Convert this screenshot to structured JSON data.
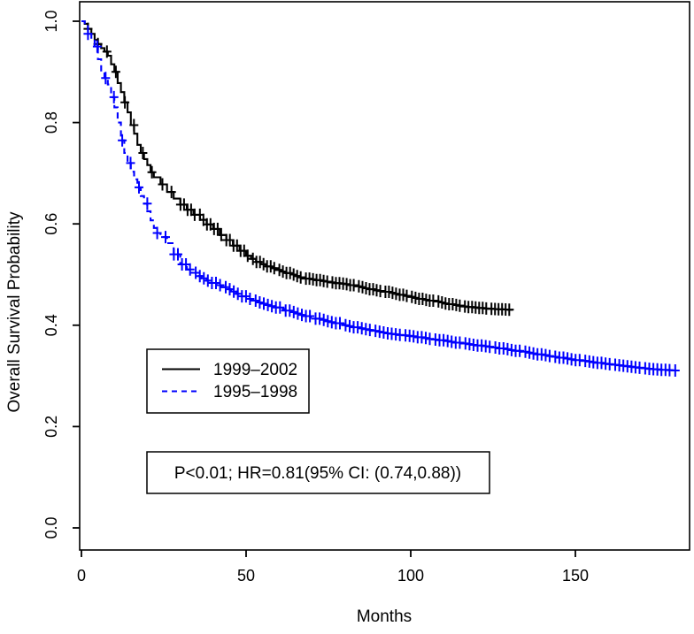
{
  "figure": {
    "xlabel": "Months",
    "ylabel": "Overall Survival Probability",
    "annotation": "P<0.01; HR=0.81(95% CI: (0.74,0.88))"
  },
  "legend": {
    "items": [
      {
        "label": "1999–2002",
        "color": "#000000",
        "style": "solid"
      },
      {
        "label": "1995–1998",
        "color": "#0000ff",
        "style": "dashed"
      }
    ]
  },
  "chart_data": {
    "type": "line",
    "subtype": "kaplan-meier-step",
    "title": "",
    "xlabel": "Months",
    "ylabel": "Overall Survival Probability",
    "xlim": [
      0,
      185
    ],
    "ylim": [
      0,
      1
    ],
    "x_ticks": [
      0,
      50,
      100,
      150
    ],
    "y_ticks": [
      0.0,
      0.2,
      0.4,
      0.6,
      0.8,
      1.0
    ],
    "grid": false,
    "legend_position": "inside-left-middle",
    "annotation": "P<0.01; HR=0.81(95% CI: (0.74,0.88))",
    "series": [
      {
        "name": "1999–2002",
        "color": "#000000",
        "line_style": "solid",
        "points": [
          [
            0,
            1.0
          ],
          [
            1,
            0.995
          ],
          [
            2,
            0.985
          ],
          [
            3,
            0.975
          ],
          [
            4,
            0.963
          ],
          [
            5,
            0.955
          ],
          [
            6,
            0.947
          ],
          [
            7,
            0.94
          ],
          [
            8,
            0.932
          ],
          [
            9,
            0.915
          ],
          [
            10,
            0.9
          ],
          [
            11,
            0.878
          ],
          [
            12,
            0.86
          ],
          [
            13,
            0.84
          ],
          [
            14,
            0.82
          ],
          [
            15,
            0.795
          ],
          [
            16,
            0.778
          ],
          [
            17,
            0.756
          ],
          [
            18,
            0.74
          ],
          [
            19,
            0.728
          ],
          [
            20,
            0.716
          ],
          [
            21,
            0.702
          ],
          [
            22,
            0.692
          ],
          [
            24,
            0.678
          ],
          [
            26,
            0.663
          ],
          [
            28,
            0.65
          ],
          [
            30,
            0.638
          ],
          [
            32,
            0.628
          ],
          [
            34,
            0.618
          ],
          [
            36,
            0.608
          ],
          [
            38,
            0.599
          ],
          [
            40,
            0.59
          ],
          [
            42,
            0.578
          ],
          [
            44,
            0.568
          ],
          [
            46,
            0.557
          ],
          [
            48,
            0.547
          ],
          [
            50,
            0.537
          ],
          [
            53,
            0.525
          ],
          [
            56,
            0.516
          ],
          [
            59,
            0.509
          ],
          [
            62,
            0.503
          ],
          [
            65,
            0.497
          ],
          [
            68,
            0.492
          ],
          [
            71,
            0.489
          ],
          [
            74,
            0.486
          ],
          [
            77,
            0.483
          ],
          [
            80,
            0.481
          ],
          [
            83,
            0.477
          ],
          [
            86,
            0.473
          ],
          [
            89,
            0.469
          ],
          [
            92,
            0.466
          ],
          [
            95,
            0.462
          ],
          [
            98,
            0.458
          ],
          [
            101,
            0.454
          ],
          [
            104,
            0.45
          ],
          [
            107,
            0.447
          ],
          [
            110,
            0.443
          ],
          [
            113,
            0.44
          ],
          [
            116,
            0.437
          ],
          [
            119,
            0.435
          ],
          [
            122,
            0.433
          ],
          [
            125,
            0.432
          ],
          [
            128,
            0.431
          ],
          [
            131,
            0.43
          ]
        ],
        "censoring": {
          "start": 2,
          "end": 131,
          "early_spacing": 2.8,
          "late_spacing": 1.15,
          "transition": 28
        }
      },
      {
        "name": "1995–1998",
        "color": "#0000ff",
        "line_style": "dashed",
        "points": [
          [
            0,
            1.0
          ],
          [
            1,
            0.99
          ],
          [
            2,
            0.975
          ],
          [
            3,
            0.962
          ],
          [
            4,
            0.95
          ],
          [
            5,
            0.925
          ],
          [
            6,
            0.9
          ],
          [
            7,
            0.888
          ],
          [
            8,
            0.875
          ],
          [
            9,
            0.85
          ],
          [
            10,
            0.83
          ],
          [
            11,
            0.8
          ],
          [
            12,
            0.765
          ],
          [
            13,
            0.74
          ],
          [
            14,
            0.72
          ],
          [
            15,
            0.703
          ],
          [
            16,
            0.688
          ],
          [
            17,
            0.672
          ],
          [
            18,
            0.655
          ],
          [
            19,
            0.64
          ],
          [
            20,
            0.625
          ],
          [
            21,
            0.607
          ],
          [
            22,
            0.592
          ],
          [
            23,
            0.582
          ],
          [
            24,
            0.574
          ],
          [
            26,
            0.562
          ],
          [
            28,
            0.54
          ],
          [
            30,
            0.52
          ],
          [
            32,
            0.51
          ],
          [
            35,
            0.497
          ],
          [
            38,
            0.488
          ],
          [
            41,
            0.479
          ],
          [
            44,
            0.471
          ],
          [
            47,
            0.462
          ],
          [
            50,
            0.452
          ],
          [
            53,
            0.445
          ],
          [
            56,
            0.44
          ],
          [
            59,
            0.435
          ],
          [
            62,
            0.429
          ],
          [
            65,
            0.423
          ],
          [
            68,
            0.418
          ],
          [
            71,
            0.413
          ],
          [
            74,
            0.408
          ],
          [
            77,
            0.404
          ],
          [
            80,
            0.4
          ],
          [
            84,
            0.394
          ],
          [
            88,
            0.389
          ],
          [
            92,
            0.384
          ],
          [
            96,
            0.381
          ],
          [
            100,
            0.378
          ],
          [
            105,
            0.373
          ],
          [
            110,
            0.369
          ],
          [
            115,
            0.364
          ],
          [
            120,
            0.36
          ],
          [
            125,
            0.356
          ],
          [
            130,
            0.351
          ],
          [
            135,
            0.346
          ],
          [
            140,
            0.341
          ],
          [
            145,
            0.336
          ],
          [
            150,
            0.331
          ],
          [
            155,
            0.327
          ],
          [
            160,
            0.323
          ],
          [
            164,
            0.32
          ],
          [
            168,
            0.317
          ],
          [
            172,
            0.314
          ],
          [
            176,
            0.312
          ],
          [
            181,
            0.31
          ]
        ],
        "censoring": {
          "start": 2,
          "end": 180.5,
          "early_spacing": 2.6,
          "late_spacing": 1.3,
          "transition": 26
        }
      }
    ]
  }
}
